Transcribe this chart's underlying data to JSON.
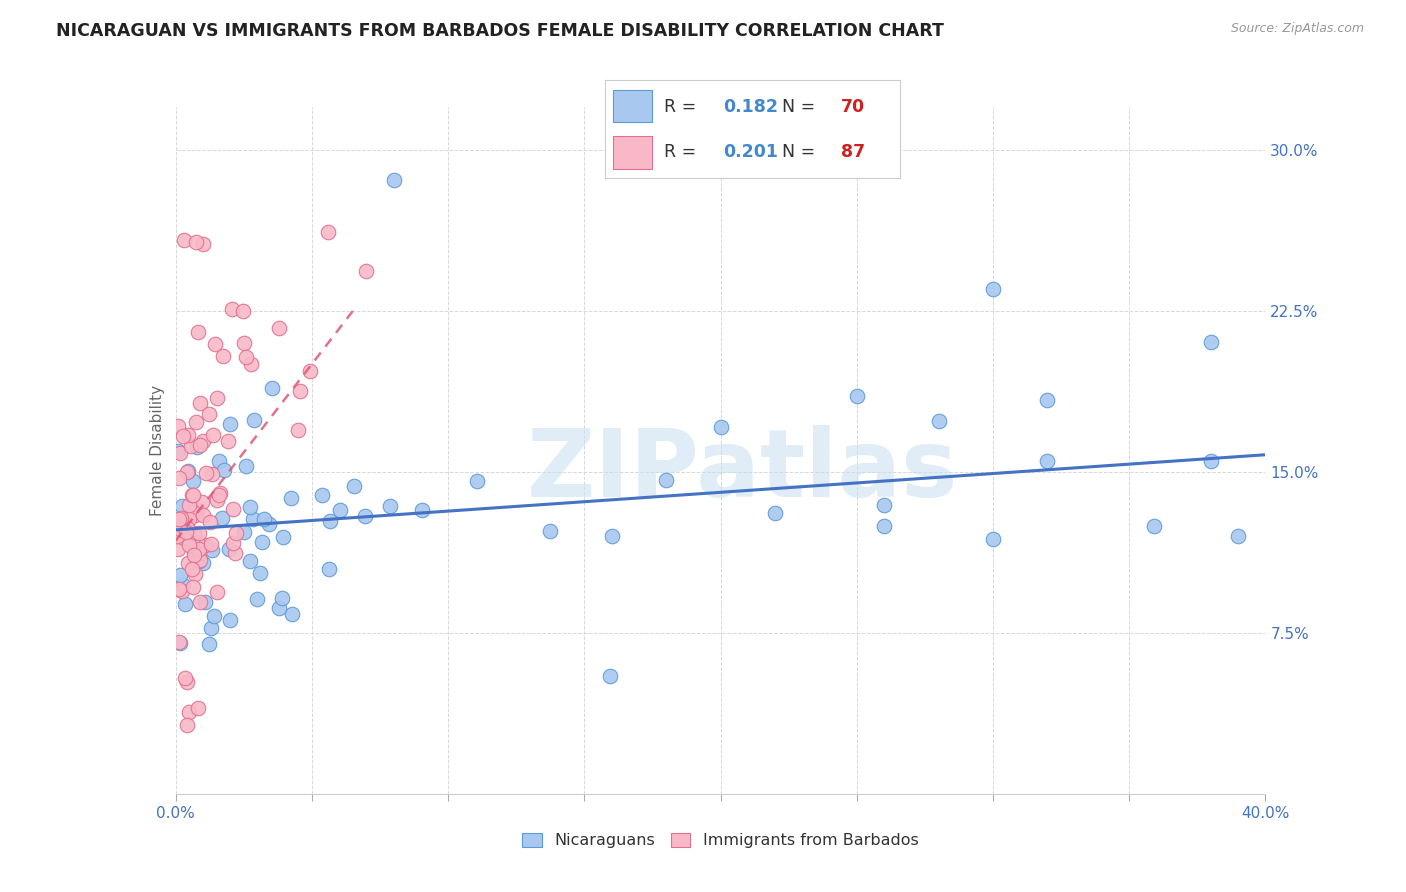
{
  "title": "NICARAGUAN VS IMMIGRANTS FROM BARBADOS FEMALE DISABILITY CORRELATION CHART",
  "source": "Source: ZipAtlas.com",
  "ylabel": "Female Disability",
  "xlim": [
    0.0,
    0.4
  ],
  "ylim": [
    0.0,
    0.32
  ],
  "yticks": [
    0.075,
    0.15,
    0.225,
    0.3
  ],
  "yticklabels": [
    "7.5%",
    "15.0%",
    "22.5%",
    "30.0%"
  ],
  "xtick_positions": [
    0.0,
    0.05,
    0.1,
    0.15,
    0.2,
    0.25,
    0.3,
    0.35,
    0.4
  ],
  "xticklabels_shown": {
    "0.0": "0.0%",
    "0.40": "40.0%"
  },
  "series1_label": "Nicaraguans",
  "series1_R": "0.182",
  "series1_N": "70",
  "series1_color": "#a8c8f0",
  "series1_edge_color": "#5b9bd5",
  "series1_line_color": "#4472c4",
  "series2_label": "Immigrants from Barbados",
  "series2_R": "0.201",
  "series2_N": "87",
  "series2_color": "#f8b8c8",
  "series2_edge_color": "#e07090",
  "series2_line_color": "#e05878",
  "watermark_text": "ZIPatlas",
  "watermark_color": "#c8ddf0",
  "background_color": "#ffffff",
  "grid_color": "#d8d8d8",
  "title_fontsize": 12.5,
  "source_fontsize": 9,
  "axis_label_fontsize": 11,
  "tick_fontsize": 11,
  "tick_color": "#4472c4",
  "legend_R_color": "#4488cc",
  "legend_N_color": "#cc2222",
  "blue_line_x": [
    0.0,
    0.4
  ],
  "blue_line_y": [
    0.123,
    0.158
  ],
  "pink_line_x": [
    0.0,
    0.065
  ],
  "pink_line_y": [
    0.118,
    0.225
  ]
}
